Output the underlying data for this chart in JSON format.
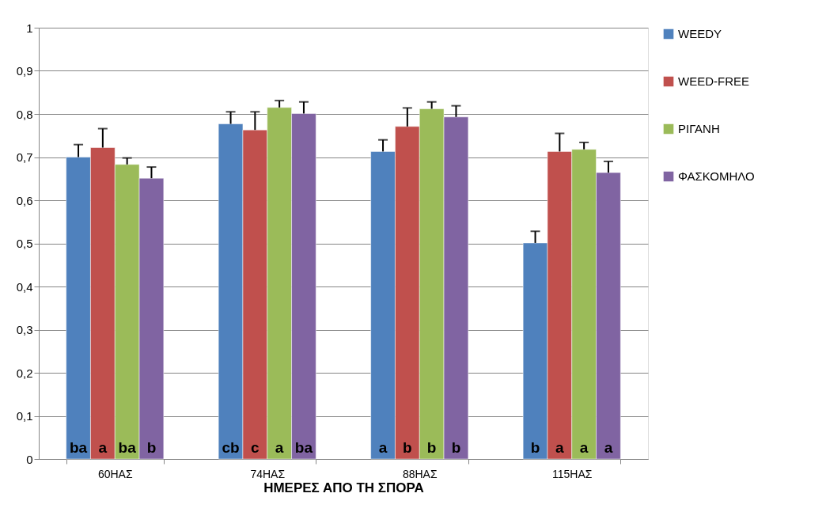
{
  "chart_data": {
    "type": "bar",
    "xlabel": "ΗΜΕΡΕΣ ΑΠΟ ΤΗ ΣΠΟΡΑ",
    "categories": [
      "60ΗΑΣ",
      "74ΗΑΣ",
      "88ΗΑΣ",
      "115ΗΑΣ"
    ],
    "series": [
      {
        "name": "WEEDY",
        "color": "#4f81bd",
        "values": [
          0.7,
          0.777,
          0.713,
          0.501
        ],
        "errors": [
          [
            0.7,
            0.729
          ],
          [
            0.777,
            0.805
          ],
          [
            0.713,
            0.74
          ],
          [
            0.501,
            0.528
          ]
        ],
        "value_labels": [
          "ba",
          "cb",
          "a",
          "b"
        ]
      },
      {
        "name": "WEED-FREE",
        "color": "#c0504d",
        "values": [
          0.722,
          0.763,
          0.771,
          0.713
        ],
        "errors": [
          [
            0.722,
            0.766
          ],
          [
            0.763,
            0.805
          ],
          [
            0.771,
            0.814
          ],
          [
            0.713,
            0.755
          ]
        ],
        "value_labels": [
          "a",
          "c",
          "b",
          "a"
        ]
      },
      {
        "name": "ΡΙΓΑΝΗ",
        "color": "#9bbb59",
        "values": [
          0.683,
          0.815,
          0.812,
          0.718
        ],
        "errors": [
          [
            0.683,
            0.698
          ],
          [
            0.815,
            0.831
          ],
          [
            0.812,
            0.828
          ],
          [
            0.718,
            0.734
          ]
        ],
        "value_labels": [
          "ba",
          "a",
          "b",
          "a"
        ]
      },
      {
        "name": "ΦΑΣΚΟΜΗΛΟ",
        "color": "#8064a2",
        "values": [
          0.651,
          0.801,
          0.793,
          0.664
        ],
        "errors": [
          [
            0.651,
            0.677
          ],
          [
            0.801,
            0.828
          ],
          [
            0.793,
            0.819
          ],
          [
            0.664,
            0.69
          ]
        ],
        "value_labels": [
          "b",
          "ba",
          "b",
          "a"
        ]
      }
    ],
    "ylim": [
      0,
      1
    ],
    "yticks": [
      0,
      {
        "value": 0.1,
        "label": "0,1"
      },
      {
        "value": 0.2,
        "label": "0,2"
      },
      {
        "value": 0.3,
        "label": "0,3"
      },
      {
        "value": 0.4,
        "label": "0,4"
      },
      {
        "value": 0.5,
        "label": "0,5"
      },
      {
        "value": 0.6,
        "label": "0,6"
      },
      {
        "value": 0.7,
        "label": "0,7"
      },
      {
        "value": 0.8,
        "label": "0,8"
      },
      {
        "value": 0.9,
        "label": "0,9"
      },
      1
    ],
    "grid": "y",
    "legend": "right"
  }
}
